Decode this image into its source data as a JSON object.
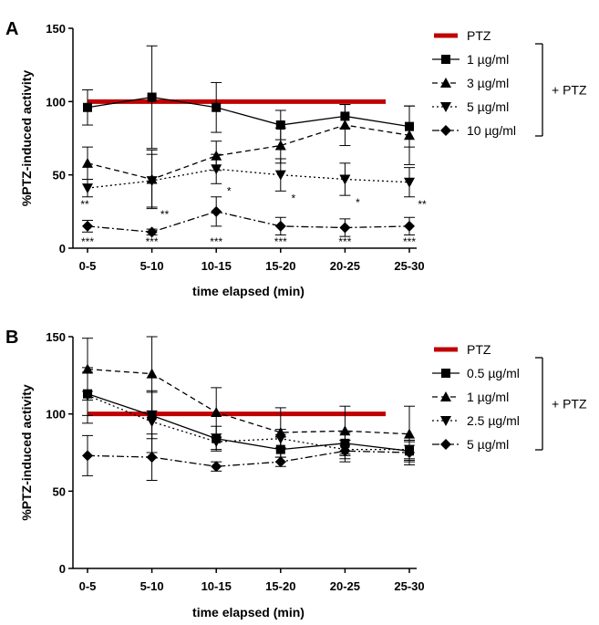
{
  "colors": {
    "ptz": "#c00000",
    "series": "#000000"
  },
  "chart_data": [
    {
      "panel": "A",
      "type": "line",
      "xlabel": "time elapsed (min)",
      "ylabel": "%PTZ-induced activity",
      "categories": [
        "0-5",
        "5-10",
        "10-15",
        "15-20",
        "20-25",
        "25-30"
      ],
      "ylim": [
        0,
        150
      ],
      "yticks": [
        0,
        50,
        100,
        150
      ],
      "grid": false,
      "legend_position": "right",
      "reference": {
        "name": "PTZ",
        "value": 100
      },
      "bracket_label": "+ PTZ",
      "series": [
        {
          "name": "1 µg/ml",
          "marker": "square",
          "dash": "solid",
          "values": [
            96,
            103,
            96,
            84,
            90,
            83
          ],
          "errors": [
            12,
            35,
            17,
            10,
            8,
            14
          ],
          "stars": [
            "",
            "",
            "",
            "",
            "",
            ""
          ]
        },
        {
          "name": "3 µg/ml",
          "marker": "triangle-up",
          "dash": "dashed",
          "values": [
            58,
            47,
            63,
            70,
            84,
            77
          ],
          "errors": [
            11,
            20,
            10,
            12,
            14,
            20
          ],
          "stars": [
            "",
            "",
            "",
            "",
            "",
            ""
          ]
        },
        {
          "name": "5 µg/ml",
          "marker": "triangle-down",
          "dash": "dotted",
          "values": [
            41,
            46,
            54,
            50,
            47,
            45
          ],
          "errors": [
            6,
            18,
            10,
            11,
            11,
            10
          ],
          "stars": [
            "**",
            "**",
            "*",
            "*",
            "*",
            "**"
          ]
        },
        {
          "name": "10 µg/ml",
          "marker": "diamond",
          "dash": "dashdot",
          "values": [
            15,
            11,
            25,
            15,
            14,
            15
          ],
          "errors": [
            4,
            2,
            10,
            6,
            6,
            6
          ],
          "stars": [
            "***",
            "***",
            "***",
            "***",
            "***",
            "***"
          ]
        }
      ]
    },
    {
      "panel": "B",
      "type": "line",
      "xlabel": "time elapsed (min)",
      "ylabel": "%PTZ-induced activity",
      "categories": [
        "0-5",
        "5-10",
        "10-15",
        "15-20",
        "20-25",
        "25-30"
      ],
      "ylim": [
        0,
        150
      ],
      "yticks": [
        0,
        50,
        100,
        150
      ],
      "grid": false,
      "legend_position": "right",
      "reference": {
        "name": "PTZ",
        "value": 100
      },
      "bracket_label": "+ PTZ",
      "series": [
        {
          "name": "0.5 µg/ml",
          "marker": "square",
          "dash": "solid",
          "values": [
            113,
            99,
            84,
            77,
            81,
            76
          ],
          "errors": [
            14,
            15,
            8,
            8,
            7,
            6
          ],
          "stars": [
            "",
            "",
            "",
            "",
            "",
            ""
          ]
        },
        {
          "name": "1 µg/ml",
          "marker": "triangle-up",
          "dash": "dashed",
          "values": [
            129,
            126,
            101,
            88,
            89,
            87
          ],
          "errors": [
            20,
            24,
            16,
            16,
            16,
            18
          ],
          "stars": [
            "",
            "",
            "",
            "",
            "",
            ""
          ]
        },
        {
          "name": "2.5 µg/ml",
          "marker": "triangle-down",
          "dash": "dotted",
          "values": [
            112,
            95,
            82,
            84,
            77,
            77
          ],
          "errors": [
            18,
            20,
            5,
            6,
            6,
            6
          ],
          "stars": [
            "",
            "",
            "",
            "",
            "",
            ""
          ]
        },
        {
          "name": "5 µg/ml",
          "marker": "diamond",
          "dash": "dashdot",
          "values": [
            73,
            72,
            66,
            69,
            76,
            75
          ],
          "errors": [
            13,
            15,
            3,
            3,
            7,
            8
          ],
          "stars": [
            "",
            "",
            "",
            "",
            "",
            ""
          ]
        }
      ]
    }
  ]
}
